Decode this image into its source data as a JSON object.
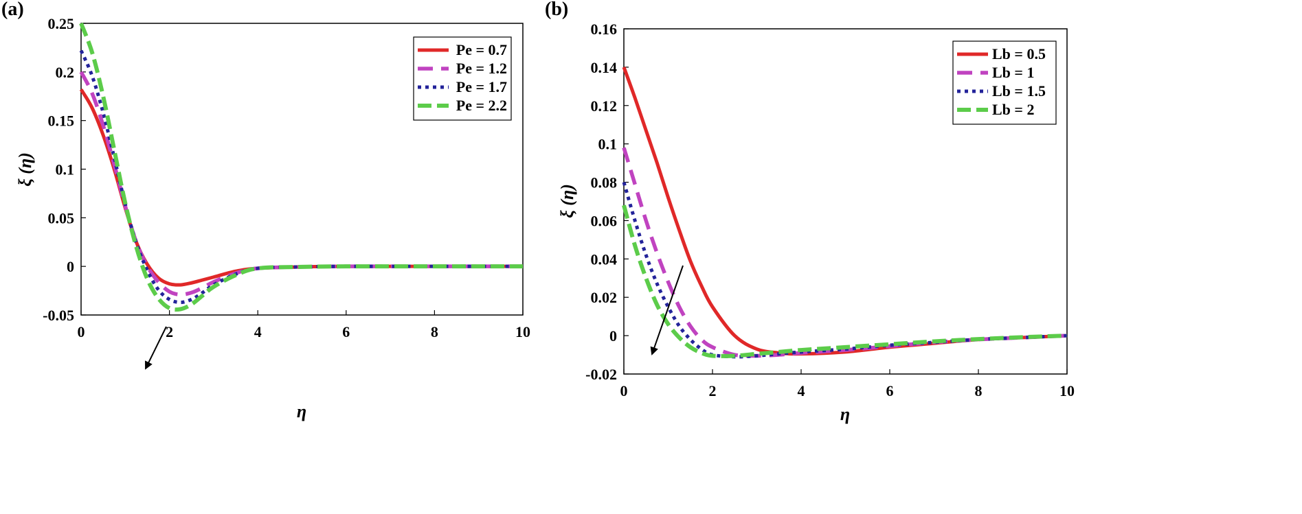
{
  "chart_data": [
    {
      "type": "line",
      "panel_label": "(a)",
      "title": "",
      "xlabel": "η",
      "ylabel": "ξ (η)",
      "xlim": [
        0,
        10
      ],
      "ylim": [
        -0.05,
        0.25
      ],
      "xticks": [
        0,
        2,
        4,
        6,
        8,
        10
      ],
      "xtick_labels": [
        "0",
        "2",
        "4",
        "6",
        "8",
        "10"
      ],
      "yticks": [
        -0.05,
        0,
        0.05,
        0.1,
        0.15,
        0.2,
        0.25
      ],
      "ytick_labels": [
        "-0.05",
        "0",
        "0.05",
        "0.1",
        "0.15",
        "0.2",
        "0.25"
      ],
      "grid": false,
      "legend_position": "top-right",
      "annotation": "arrow indicating decreasing trend near the minimum",
      "x": [
        0,
        0.25,
        0.5,
        0.75,
        1,
        1.25,
        1.5,
        1.75,
        2,
        2.25,
        2.5,
        2.75,
        3,
        3.5,
        4,
        5,
        6,
        7,
        8,
        9,
        10
      ],
      "series": [
        {
          "name": "Pe = 0.7",
          "color": "#e02828",
          "dash": "solid",
          "values": [
            0.182,
            0.163,
            0.135,
            0.1,
            0.06,
            0.025,
            0.002,
            -0.012,
            -0.018,
            -0.019,
            -0.017,
            -0.014,
            -0.011,
            -0.005,
            -0.002,
            -0.0005,
            0,
            0,
            0,
            0,
            0
          ]
        },
        {
          "name": "Pe = 1.2",
          "color": "#c043c0",
          "dash": "dash",
          "values": [
            0.2,
            0.178,
            0.145,
            0.105,
            0.062,
            0.025,
            0.0,
            -0.016,
            -0.026,
            -0.029,
            -0.027,
            -0.022,
            -0.016,
            -0.007,
            -0.002,
            -0.0005,
            0,
            0,
            0,
            0,
            0
          ]
        },
        {
          "name": "Pe = 1.7",
          "color": "#23239a",
          "dash": "dot",
          "values": [
            0.222,
            0.196,
            0.158,
            0.112,
            0.064,
            0.024,
            -0.004,
            -0.024,
            -0.034,
            -0.037,
            -0.034,
            -0.027,
            -0.019,
            -0.008,
            -0.002,
            -0.0005,
            0,
            0,
            0,
            0,
            0
          ]
        },
        {
          "name": "Pe = 2.2",
          "color": "#5ccc4a",
          "dash": "longdash",
          "values": [
            0.25,
            0.22,
            0.175,
            0.12,
            0.065,
            0.02,
            -0.013,
            -0.033,
            -0.043,
            -0.044,
            -0.039,
            -0.03,
            -0.021,
            -0.009,
            -0.002,
            -0.0005,
            0,
            0,
            0,
            0,
            0
          ]
        }
      ]
    },
    {
      "type": "line",
      "panel_label": "(b)",
      "title": "",
      "xlabel": "η",
      "ylabel": "ξ (η)",
      "xlim": [
        0,
        10
      ],
      "ylim": [
        -0.02,
        0.16
      ],
      "xticks": [
        0,
        2,
        4,
        6,
        8,
        10
      ],
      "xtick_labels": [
        "0",
        "2",
        "4",
        "6",
        "8",
        "10"
      ],
      "yticks": [
        -0.02,
        0,
        0.02,
        0.04,
        0.06,
        0.08,
        0.1,
        0.12,
        0.14,
        0.16
      ],
      "ytick_labels": [
        "-0.02",
        "0",
        "0.02",
        "0.04",
        "0.06",
        "0.08",
        "0.1",
        "0.12",
        "0.14",
        "0.16"
      ],
      "grid": false,
      "legend_position": "top-right",
      "annotation": "arrow indicating decreasing trend with increasing Lb",
      "x": [
        0,
        0.25,
        0.5,
        0.75,
        1,
        1.25,
        1.5,
        1.75,
        2,
        2.5,
        3,
        3.5,
        4,
        5,
        6,
        7,
        8,
        9,
        10
      ],
      "series": [
        {
          "name": "Lb = 0.5",
          "color": "#e02828",
          "dash": "solid",
          "values": [
            0.14,
            0.124,
            0.107,
            0.09,
            0.072,
            0.055,
            0.039,
            0.026,
            0.015,
            0.0,
            -0.007,
            -0.009,
            -0.0095,
            -0.0085,
            -0.006,
            -0.004,
            -0.002,
            -0.001,
            0
          ]
        },
        {
          "name": "Lb = 1",
          "color": "#c043c0",
          "dash": "dash",
          "values": [
            0.098,
            0.079,
            0.06,
            0.043,
            0.028,
            0.015,
            0.005,
            -0.002,
            -0.006,
            -0.01,
            -0.0105,
            -0.01,
            -0.009,
            -0.0075,
            -0.0055,
            -0.0035,
            -0.002,
            -0.001,
            0
          ]
        },
        {
          "name": "Lb = 1.5",
          "color": "#23239a",
          "dash": "dot",
          "values": [
            0.08,
            0.06,
            0.042,
            0.027,
            0.015,
            0.005,
            -0.002,
            -0.007,
            -0.01,
            -0.011,
            -0.0105,
            -0.0095,
            -0.0085,
            -0.007,
            -0.005,
            -0.0035,
            -0.002,
            -0.001,
            0
          ]
        },
        {
          "name": "Lb = 2",
          "color": "#5ccc4a",
          "dash": "longdash",
          "values": [
            0.068,
            0.047,
            0.03,
            0.016,
            0.006,
            -0.001,
            -0.006,
            -0.009,
            -0.0105,
            -0.0105,
            -0.0095,
            -0.0085,
            -0.0075,
            -0.006,
            -0.0045,
            -0.003,
            -0.0018,
            -0.0008,
            0
          ]
        }
      ]
    }
  ]
}
